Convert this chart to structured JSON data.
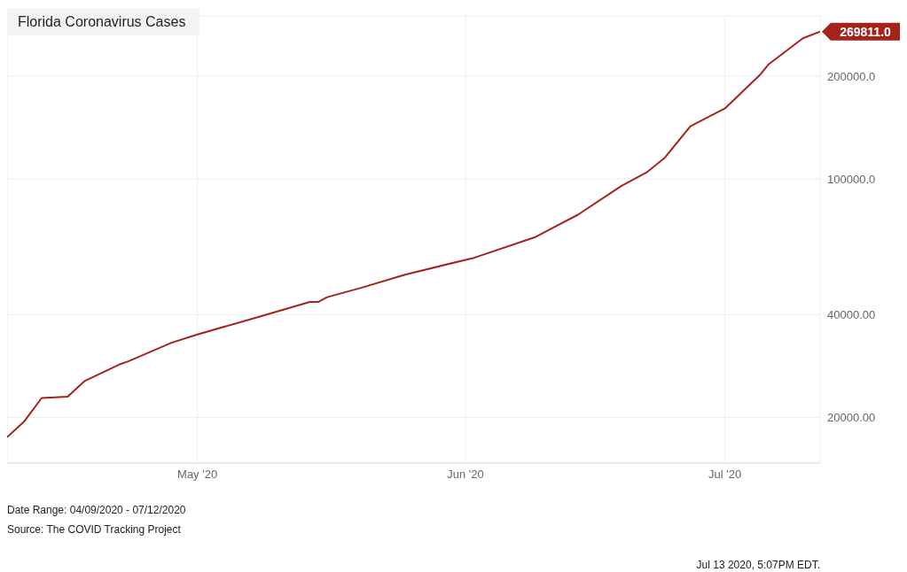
{
  "chart_data": {
    "type": "line",
    "title": "Florida Coronavirus Cases",
    "x": [
      "2020-04-09",
      "2020-04-11",
      "2020-04-13",
      "2020-04-16",
      "2020-04-18",
      "2020-04-22",
      "2020-04-23",
      "2020-04-28",
      "2020-05-01",
      "2020-05-07",
      "2020-05-14",
      "2020-05-15",
      "2020-05-16",
      "2020-05-20",
      "2020-05-25",
      "2020-06-01",
      "2020-06-02",
      "2020-06-09",
      "2020-06-14",
      "2020-06-19",
      "2020-06-22",
      "2020-06-24",
      "2020-06-27",
      "2020-07-01",
      "2020-07-05",
      "2020-07-06",
      "2020-07-10",
      "2020-07-12"
    ],
    "series": [
      {
        "color": "#a4231c",
        "values": [
          17500,
          19500,
          22800,
          23000,
          25600,
          28600,
          29200,
          33100,
          35000,
          38700,
          43600,
          43600,
          45000,
          48000,
          52400,
          57900,
          58700,
          67400,
          78500,
          95200,
          104700,
          115000,
          142600,
          160800,
          201000,
          216000,
          258000,
          269811
        ]
      }
    ],
    "log": "y",
    "xlim": [
      "2020-04-09",
      "2020-07-12"
    ],
    "xticks": [
      {
        "value": "2020-05-01",
        "label": "May '20"
      },
      {
        "value": "2020-06-01",
        "label": "Jun '20"
      },
      {
        "value": "2020-07-01",
        "label": "Jul '20"
      }
    ],
    "ylim": [
      14700,
      300000
    ],
    "yticks": [
      {
        "value": 20000,
        "label": "20000.00"
      },
      {
        "value": 40000,
        "label": "40000.00"
      },
      {
        "value": 100000,
        "label": "100000.0"
      },
      {
        "value": 200000,
        "label": "200000.0"
      }
    ],
    "grid": true,
    "marker": "none",
    "line_style": "solid",
    "annotations": [
      {
        "text": "269811.0",
        "x": "2020-07-12",
        "y": 269811
      },
      "Date Range: 04/09/2020 - 07/12/2020",
      "Source: The COVID Tracking Project",
      "Jul 13 2020, 5:07PM EDT."
    ]
  }
}
